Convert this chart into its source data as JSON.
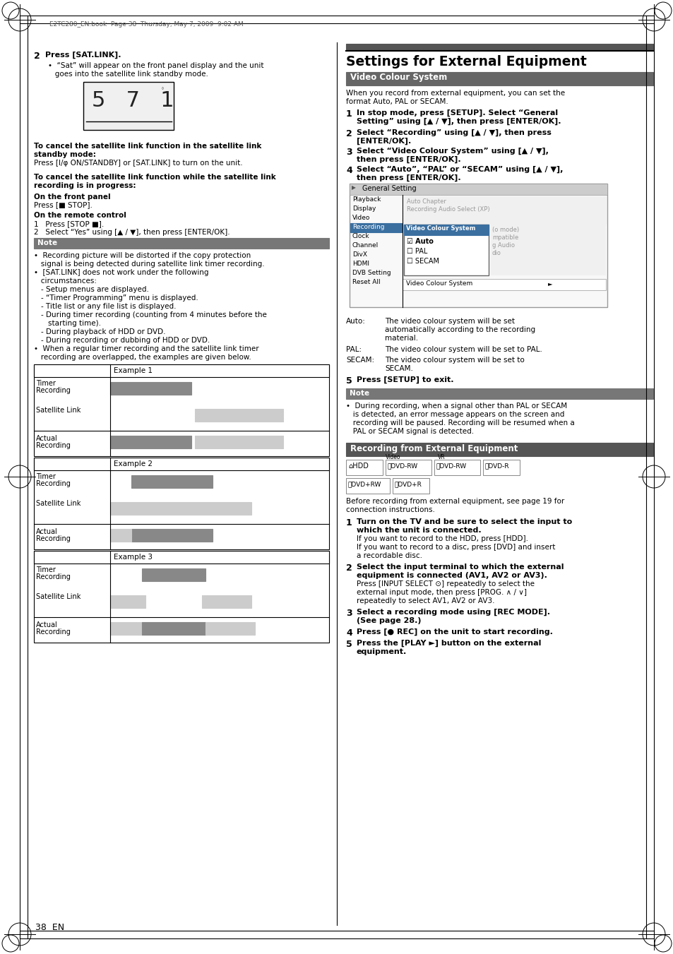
{
  "page_bg": "#ffffff",
  "header_text": "E2TC280_EN.book  Page 38  Thursday, May 7, 2009  9:02 AM",
  "page_number": "38  EN"
}
